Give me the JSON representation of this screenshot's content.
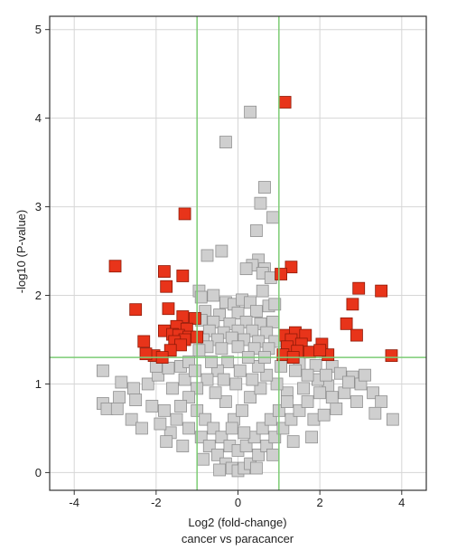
{
  "chart_data": {
    "type": "scatter",
    "title": "",
    "xlabel_line1": "Log2 (fold-change)",
    "xlabel_line2": "cancer vs paracancer",
    "ylabel": "-log10 (P-value)",
    "xlim": [
      -4.6,
      4.6
    ],
    "ylim": [
      -0.2,
      5.15
    ],
    "xticks": [
      -4,
      -2,
      0,
      2,
      4
    ],
    "yticks": [
      0,
      1,
      2,
      3,
      4,
      5
    ],
    "grid": true,
    "thresholds": {
      "log2fc": [
        -1,
        1
      ],
      "neg_log10_p": 1.3
    },
    "colors": {
      "significant": "#e8341a",
      "significant_edge": "#8e1a08",
      "nonsignificant": "#cfcfcf",
      "nonsignificant_edge": "#8f8f8f",
      "threshold_line": "#7ccc74",
      "grid": "#d6d6d6"
    },
    "series": [
      {
        "role": "significant",
        "points": [
          [
            1.15,
            4.18
          ],
          [
            -1.3,
            2.92
          ],
          [
            -3.0,
            2.33
          ],
          [
            -1.8,
            2.27
          ],
          [
            -1.35,
            2.22
          ],
          [
            -1.75,
            2.1
          ],
          [
            1.3,
            2.32
          ],
          [
            1.05,
            2.24
          ],
          [
            2.95,
            2.08
          ],
          [
            3.5,
            2.05
          ],
          [
            2.8,
            1.9
          ],
          [
            -2.5,
            1.84
          ],
          [
            -1.7,
            1.85
          ],
          [
            -1.35,
            1.76
          ],
          [
            -1.05,
            1.74
          ],
          [
            -1.5,
            1.65
          ],
          [
            -1.25,
            1.62
          ],
          [
            -1.8,
            1.6
          ],
          [
            -1.6,
            1.56
          ],
          [
            -1.45,
            1.55
          ],
          [
            -1.2,
            1.53
          ],
          [
            -1.0,
            1.53
          ],
          [
            -1.3,
            1.5
          ],
          [
            -1.55,
            1.48
          ],
          [
            -1.4,
            1.44
          ],
          [
            -2.3,
            1.48
          ],
          [
            -1.65,
            1.38
          ],
          [
            -2.05,
            1.32
          ],
          [
            -2.25,
            1.34
          ],
          [
            -1.85,
            1.3
          ],
          [
            2.65,
            1.68
          ],
          [
            2.9,
            1.55
          ],
          [
            1.15,
            1.55
          ],
          [
            1.4,
            1.58
          ],
          [
            1.65,
            1.55
          ],
          [
            1.3,
            1.5
          ],
          [
            1.55,
            1.45
          ],
          [
            1.2,
            1.42
          ],
          [
            1.45,
            1.37
          ],
          [
            1.75,
            1.36
          ],
          [
            2.05,
            1.45
          ],
          [
            2.2,
            1.33
          ],
          [
            1.1,
            1.33
          ],
          [
            3.75,
            1.32
          ],
          [
            2.0,
            1.38
          ],
          [
            1.35,
            1.3
          ]
        ]
      },
      {
        "role": "nonsignificant",
        "points": [
          [
            0.3,
            4.07
          ],
          [
            -0.3,
            3.73
          ],
          [
            0.65,
            3.22
          ],
          [
            0.55,
            3.04
          ],
          [
            0.85,
            2.88
          ],
          [
            0.45,
            2.73
          ],
          [
            -0.4,
            2.5
          ],
          [
            -0.75,
            2.45
          ],
          [
            0.5,
            2.4
          ],
          [
            0.35,
            2.34
          ],
          [
            0.65,
            2.3
          ],
          [
            0.6,
            2.25
          ],
          [
            0.8,
            2.2
          ],
          [
            0.2,
            2.3
          ],
          [
            -0.95,
            2.05
          ],
          [
            -0.9,
            1.98
          ],
          [
            -0.6,
            2.0
          ],
          [
            -0.3,
            1.92
          ],
          [
            -0.1,
            1.9
          ],
          [
            0.1,
            1.95
          ],
          [
            0.3,
            1.92
          ],
          [
            0.6,
            2.05
          ],
          [
            0.75,
            1.88
          ],
          [
            0.9,
            1.9
          ],
          [
            -0.8,
            1.82
          ],
          [
            -0.45,
            1.78
          ],
          [
            0.0,
            1.8
          ],
          [
            0.45,
            1.82
          ],
          [
            -0.9,
            1.72
          ],
          [
            -0.6,
            1.7
          ],
          [
            -0.2,
            1.68
          ],
          [
            0.2,
            1.7
          ],
          [
            0.55,
            1.68
          ],
          [
            0.85,
            1.7
          ],
          [
            -0.7,
            1.6
          ],
          [
            -0.35,
            1.58
          ],
          [
            0.0,
            1.6
          ],
          [
            0.35,
            1.6
          ],
          [
            0.7,
            1.58
          ],
          [
            -0.85,
            1.5
          ],
          [
            -0.5,
            1.5
          ],
          [
            -0.15,
            1.52
          ],
          [
            0.15,
            1.5
          ],
          [
            0.5,
            1.48
          ],
          [
            0.9,
            1.48
          ],
          [
            -0.75,
            1.42
          ],
          [
            -0.4,
            1.4
          ],
          [
            0.0,
            1.42
          ],
          [
            0.4,
            1.4
          ],
          [
            0.75,
            1.4
          ],
          [
            -0.95,
            1.38
          ],
          [
            1.5,
            1.23
          ],
          [
            1.9,
            1.21
          ],
          [
            2.3,
            1.2
          ],
          [
            2.5,
            1.12
          ],
          [
            2.8,
            1.08
          ],
          [
            3.0,
            1.0
          ],
          [
            3.3,
            0.9
          ],
          [
            3.5,
            0.8
          ],
          [
            3.35,
            0.67
          ],
          [
            3.78,
            0.6
          ],
          [
            2.6,
            0.9
          ],
          [
            2.9,
            0.8
          ],
          [
            2.4,
            0.72
          ],
          [
            2.2,
            0.98
          ],
          [
            1.95,
            1.05
          ],
          [
            1.7,
            1.1
          ],
          [
            1.4,
            1.15
          ],
          [
            -3.3,
            1.15
          ],
          [
            -2.85,
            1.02
          ],
          [
            -2.55,
            0.95
          ],
          [
            -2.9,
            0.85
          ],
          [
            -3.3,
            0.78
          ],
          [
            -3.2,
            0.72
          ],
          [
            -2.95,
            0.72
          ],
          [
            -2.5,
            0.82
          ],
          [
            -2.2,
            1.0
          ],
          [
            -1.95,
            1.1
          ],
          [
            -1.7,
            1.18
          ],
          [
            -1.4,
            1.2
          ],
          [
            -1.2,
            1.25
          ],
          [
            -1.6,
            0.95
          ],
          [
            -1.3,
            1.05
          ],
          [
            -2.1,
            0.75
          ],
          [
            -1.8,
            0.7
          ],
          [
            -1.5,
            0.6
          ],
          [
            -1.2,
            0.5
          ],
          [
            -0.9,
            0.4
          ],
          [
            -0.7,
            0.3
          ],
          [
            -0.5,
            0.2
          ],
          [
            -0.3,
            0.1
          ],
          [
            -0.15,
            0.05
          ],
          [
            0.0,
            0.02
          ],
          [
            0.15,
            0.05
          ],
          [
            0.3,
            0.1
          ],
          [
            0.5,
            0.2
          ],
          [
            0.7,
            0.3
          ],
          [
            0.9,
            0.4
          ],
          [
            1.1,
            0.5
          ],
          [
            1.3,
            0.6
          ],
          [
            1.5,
            0.7
          ],
          [
            1.7,
            0.8
          ],
          [
            2.0,
            0.9
          ],
          [
            2.3,
            0.85
          ],
          [
            1.2,
            0.9
          ],
          [
            0.95,
            1.0
          ],
          [
            0.7,
            1.1
          ],
          [
            0.5,
            1.2
          ],
          [
            0.25,
            1.3
          ],
          [
            -0.25,
            1.25
          ],
          [
            -0.5,
            1.15
          ],
          [
            -0.75,
            1.05
          ],
          [
            -1.0,
            0.95
          ],
          [
            -1.2,
            0.85
          ],
          [
            -1.4,
            0.75
          ],
          [
            -1.0,
            0.7
          ],
          [
            -0.8,
            0.6
          ],
          [
            -0.6,
            0.5
          ],
          [
            -0.4,
            0.4
          ],
          [
            -0.2,
            0.3
          ],
          [
            0.0,
            0.25
          ],
          [
            0.2,
            0.3
          ],
          [
            0.4,
            0.4
          ],
          [
            0.6,
            0.5
          ],
          [
            0.8,
            0.6
          ],
          [
            1.0,
            0.7
          ],
          [
            1.2,
            0.8
          ],
          [
            -0.1,
            0.6
          ],
          [
            0.1,
            0.7
          ],
          [
            -0.3,
            0.8
          ],
          [
            0.3,
            0.85
          ],
          [
            -0.55,
            0.9
          ],
          [
            0.55,
            0.95
          ],
          [
            -0.05,
            1.0
          ],
          [
            0.05,
            1.15
          ],
          [
            -0.35,
            1.05
          ],
          [
            0.35,
            1.05
          ],
          [
            -0.65,
            1.25
          ],
          [
            0.65,
            1.3
          ],
          [
            1.05,
            1.2
          ],
          [
            -1.05,
            1.15
          ],
          [
            1.6,
            0.95
          ],
          [
            1.85,
            0.6
          ],
          [
            -1.65,
            0.45
          ],
          [
            -1.9,
            0.55
          ],
          [
            2.1,
            0.65
          ],
          [
            0.85,
            0.2
          ],
          [
            -0.85,
            0.15
          ],
          [
            0.45,
            0.05
          ],
          [
            -0.45,
            0.03
          ],
          [
            1.35,
            0.35
          ],
          [
            -1.35,
            0.3
          ],
          [
            2.7,
            1.02
          ],
          [
            -2.6,
            0.6
          ],
          [
            3.1,
            1.1
          ],
          [
            -2.35,
            0.5
          ],
          [
            1.8,
            0.4
          ],
          [
            -1.75,
            0.35
          ],
          [
            2.15,
            1.1
          ],
          [
            -2.0,
            1.2
          ],
          [
            0.15,
            0.45
          ],
          [
            -0.15,
            0.5
          ]
        ]
      }
    ]
  }
}
